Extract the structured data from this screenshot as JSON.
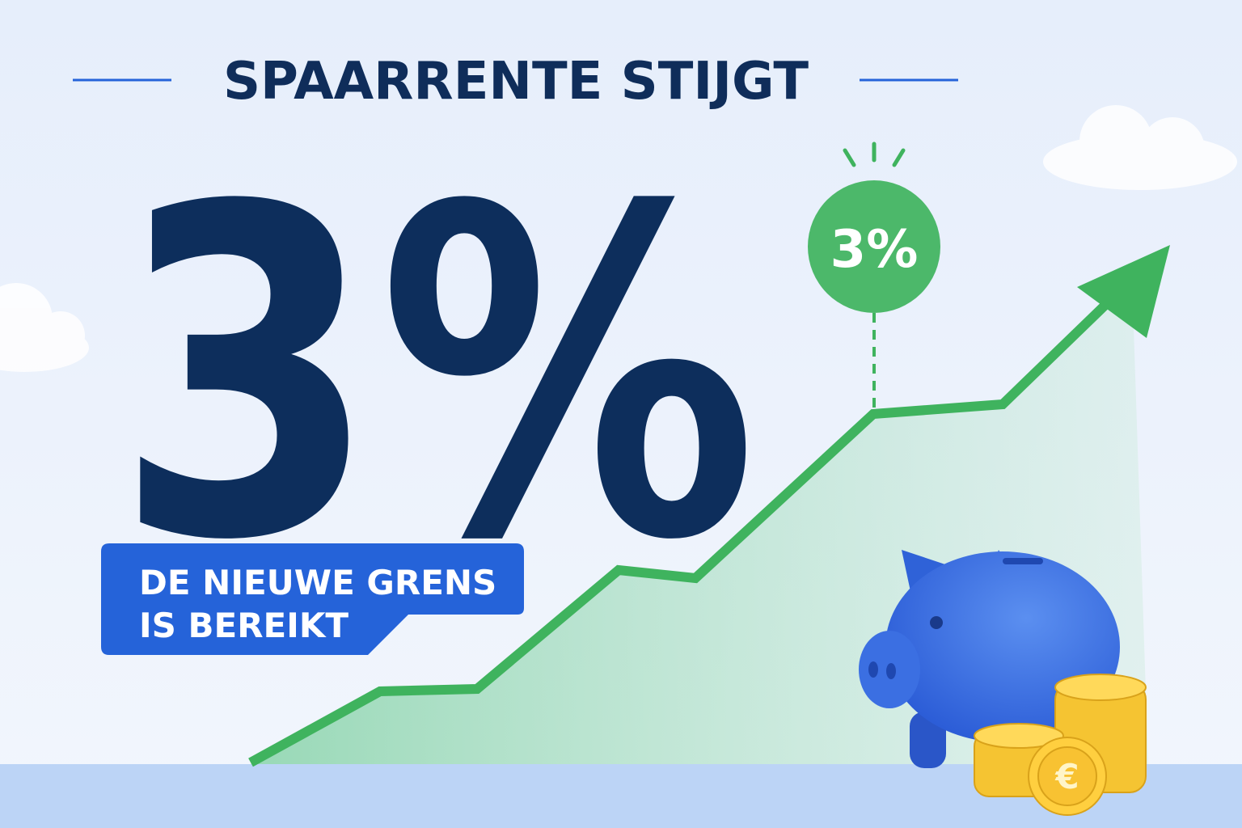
{
  "header": {
    "title": "SPAARRENTE STIJGT"
  },
  "headline": {
    "value": "3%"
  },
  "badge": {
    "label": "3%"
  },
  "callout": {
    "lines": [
      "DE NIEUWE GRENS",
      "IS BEREIKT"
    ]
  },
  "coin": {
    "symbol": "€"
  }
}
